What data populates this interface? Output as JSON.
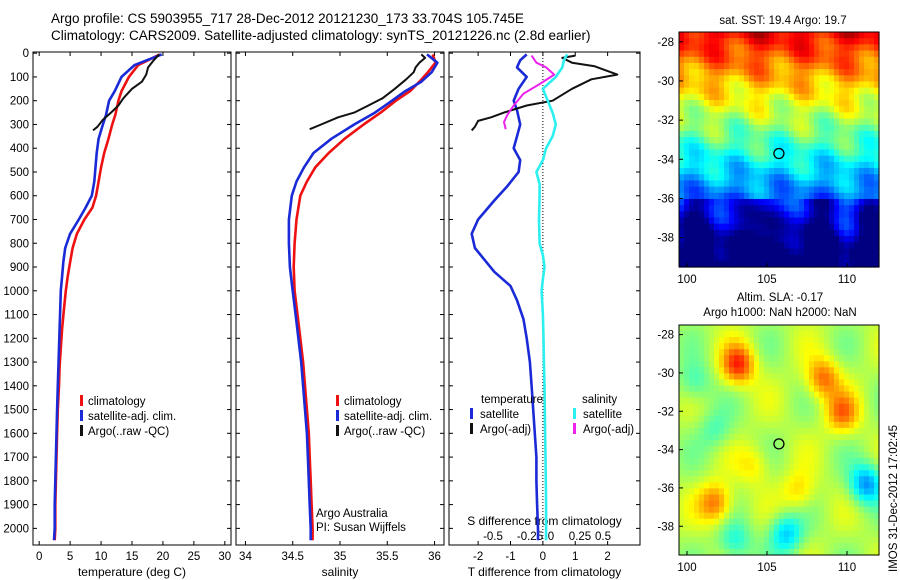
{
  "header": {
    "line1": "Argo profile: CS 5903955_717 28-Dec-2012 20121230_173 33.704S 105.745E",
    "line2": "Climatology: CARS2009. Satellite-adjusted climatology: synTS_20121226.nc (2.8d earlier)"
  },
  "stamp": "IMOS 31-Dec-2012 17:02:45",
  "colors": {
    "clim": "#ee1111",
    "sat": "#1a2ad6",
    "argo": "#111111",
    "sal_sat": "#2cf0f0",
    "sal_argo": "#ee22ee"
  },
  "depth_ticks": [
    0,
    100,
    200,
    300,
    400,
    500,
    600,
    700,
    800,
    900,
    1000,
    1100,
    1200,
    1300,
    1400,
    1500,
    1600,
    1700,
    1800,
    1900,
    2000
  ],
  "chart_data": [
    {
      "type": "line",
      "id": "temperature",
      "xlabel": "temperature (deg C)",
      "ylabel": "",
      "xlim": [
        -1,
        31
      ],
      "ylim": [
        2070,
        -5
      ],
      "xticks": [
        0,
        5,
        10,
        15,
        20,
        25,
        30
      ],
      "legend": [
        "climatology",
        "satellite-adj. clim.",
        "Argo(..raw -QC)"
      ],
      "series": [
        {
          "name": "climatology",
          "color": "clim",
          "points": [
            [
              19.5,
              5
            ],
            [
              16,
              50
            ],
            [
              14.5,
              100
            ],
            [
              13.3,
              160
            ],
            [
              12.8,
              200
            ],
            [
              12.3,
              260
            ],
            [
              11.8,
              300
            ],
            [
              11.2,
              360
            ],
            [
              10.5,
              420
            ],
            [
              10,
              480
            ],
            [
              9.6,
              540
            ],
            [
              9.2,
              600
            ],
            [
              8.6,
              650
            ],
            [
              7.3,
              700
            ],
            [
              6.1,
              760
            ],
            [
              5.4,
              820
            ],
            [
              5,
              880
            ],
            [
              4.6,
              940
            ],
            [
              4.3,
              1000
            ],
            [
              4,
              1080
            ],
            [
              3.7,
              1160
            ],
            [
              3.5,
              1240
            ],
            [
              3.3,
              1320
            ],
            [
              3.2,
              1400
            ],
            [
              3,
              1500
            ],
            [
              2.9,
              1600
            ],
            [
              2.8,
              1700
            ],
            [
              2.7,
              1800
            ],
            [
              2.6,
              1900
            ],
            [
              2.6,
              2000
            ],
            [
              2.5,
              2050
            ]
          ]
        },
        {
          "name": "satellite-adj. clim.",
          "color": "sat",
          "points": [
            [
              19.8,
              5
            ],
            [
              15.4,
              50
            ],
            [
              13.3,
              100
            ],
            [
              12.2,
              160
            ],
            [
              11.3,
              200
            ],
            [
              10.8,
              260
            ],
            [
              10.3,
              300
            ],
            [
              9.6,
              360
            ],
            [
              9.3,
              420
            ],
            [
              9.1,
              480
            ],
            [
              8.9,
              540
            ],
            [
              8.5,
              600
            ],
            [
              7.5,
              650
            ],
            [
              6.4,
              700
            ],
            [
              5,
              760
            ],
            [
              4.2,
              820
            ],
            [
              3.9,
              880
            ],
            [
              3.7,
              940
            ],
            [
              3.5,
              1000
            ],
            [
              3.4,
              1080
            ],
            [
              3.3,
              1160
            ],
            [
              3.2,
              1240
            ],
            [
              3.1,
              1320
            ],
            [
              3,
              1400
            ],
            [
              2.9,
              1500
            ],
            [
              2.8,
              1600
            ],
            [
              2.7,
              1700
            ],
            [
              2.6,
              1800
            ],
            [
              2.5,
              1900
            ],
            [
              2.5,
              2000
            ],
            [
              2.4,
              2050
            ]
          ]
        },
        {
          "name": "Argo(..raw -QC)",
          "color": "argo",
          "points": [
            [
              19.4,
              5
            ],
            [
              18.5,
              30
            ],
            [
              17.6,
              60
            ],
            [
              17.3,
              90
            ],
            [
              16.6,
              120
            ],
            [
              15,
              150
            ],
            [
              13.6,
              190
            ],
            [
              12.8,
              220
            ],
            [
              11.6,
              250
            ],
            [
              10.3,
              280
            ],
            [
              9.4,
              310
            ],
            [
              8.7,
              325
            ]
          ]
        }
      ]
    },
    {
      "type": "line",
      "id": "salinity",
      "xlabel": "salinity",
      "ylabel": "",
      "xlim": [
        33.9,
        36.1
      ],
      "ylim": [
        2070,
        -5
      ],
      "xticks": [
        34,
        34.5,
        35,
        35.5,
        36
      ],
      "legend": [
        "climatology",
        "satellite-adj. clim.",
        "Argo(..raw -QC)"
      ],
      "series": [
        {
          "name": "climatology",
          "color": "clim",
          "points": [
            [
              35.98,
              5
            ],
            [
              36.01,
              40
            ],
            [
              35.93,
              80
            ],
            [
              35.84,
              120
            ],
            [
              35.74,
              160
            ],
            [
              35.59,
              200
            ],
            [
              35.43,
              250
            ],
            [
              35.25,
              300
            ],
            [
              35.05,
              360
            ],
            [
              34.88,
              420
            ],
            [
              34.74,
              480
            ],
            [
              34.65,
              540
            ],
            [
              34.58,
              600
            ],
            [
              34.54,
              700
            ],
            [
              34.52,
              800
            ],
            [
              34.51,
              900
            ],
            [
              34.52,
              1000
            ],
            [
              34.55,
              1100
            ],
            [
              34.58,
              1200
            ],
            [
              34.61,
              1300
            ],
            [
              34.63,
              1400
            ],
            [
              34.65,
              1500
            ],
            [
              34.67,
              1600
            ],
            [
              34.68,
              1700
            ],
            [
              34.69,
              1800
            ],
            [
              34.7,
              1900
            ],
            [
              34.71,
              2000
            ],
            [
              34.71,
              2050
            ]
          ]
        },
        {
          "name": "satellite-adj. clim.",
          "color": "sat",
          "points": [
            [
              35.92,
              5
            ],
            [
              36.03,
              40
            ],
            [
              35.97,
              80
            ],
            [
              35.86,
              120
            ],
            [
              35.69,
              160
            ],
            [
              35.55,
              200
            ],
            [
              35.37,
              250
            ],
            [
              35.15,
              300
            ],
            [
              34.91,
              360
            ],
            [
              34.72,
              420
            ],
            [
              34.62,
              480
            ],
            [
              34.54,
              540
            ],
            [
              34.49,
              600
            ],
            [
              34.46,
              700
            ],
            [
              34.46,
              800
            ],
            [
              34.47,
              900
            ],
            [
              34.5,
              1000
            ],
            [
              34.53,
              1100
            ],
            [
              34.56,
              1200
            ],
            [
              34.59,
              1300
            ],
            [
              34.61,
              1400
            ],
            [
              34.63,
              1500
            ],
            [
              34.65,
              1600
            ],
            [
              34.66,
              1700
            ],
            [
              34.67,
              1800
            ],
            [
              34.68,
              1900
            ],
            [
              34.69,
              2000
            ],
            [
              34.69,
              2050
            ]
          ]
        },
        {
          "name": "Argo(..raw -QC)",
          "color": "argo",
          "points": [
            [
              35.86,
              5
            ],
            [
              35.9,
              20
            ],
            [
              35.84,
              40
            ],
            [
              35.8,
              60
            ],
            [
              35.78,
              80
            ],
            [
              35.7,
              110
            ],
            [
              35.58,
              150
            ],
            [
              35.45,
              190
            ],
            [
              35.3,
              220
            ],
            [
              35.15,
              250
            ],
            [
              34.98,
              270
            ],
            [
              34.8,
              300
            ],
            [
              34.68,
              320
            ]
          ]
        }
      ]
    },
    {
      "type": "line",
      "id": "differences",
      "xlabel": "T difference from climatology",
      "xlabel_top": "S difference from climatology",
      "xlim": [
        -2.9,
        3.0
      ],
      "ylim": [
        2070,
        -5
      ],
      "xticks": [
        -2,
        -1,
        0,
        1,
        2
      ],
      "xticks_top": [
        "-0.5",
        "-0.25",
        "0",
        "0.25",
        "0.5"
      ],
      "legend": {
        "temperature": [
          "satellite",
          "Argo(-adj)"
        ],
        "salinity": [
          "satellite",
          "Argo(-adj)"
        ]
      },
      "series": [
        {
          "name": "temperature satellite",
          "color": "sat",
          "points": [
            [
              -0.5,
              5
            ],
            [
              -0.7,
              30
            ],
            [
              -0.8,
              60
            ],
            [
              -0.5,
              100
            ],
            [
              -0.75,
              150
            ],
            [
              -0.9,
              200
            ],
            [
              -0.8,
              240
            ],
            [
              -0.7,
              300
            ],
            [
              -0.8,
              350
            ],
            [
              -0.9,
              400
            ],
            [
              -0.7,
              450
            ],
            [
              -0.75,
              500
            ],
            [
              -1.1,
              560
            ],
            [
              -1.5,
              620
            ],
            [
              -2.0,
              700
            ],
            [
              -2.2,
              760
            ],
            [
              -2.1,
              820
            ],
            [
              -1.8,
              870
            ],
            [
              -1.5,
              920
            ],
            [
              -1.0,
              980
            ],
            [
              -0.8,
              1040
            ],
            [
              -0.6,
              1120
            ],
            [
              -0.5,
              1200
            ],
            [
              -0.4,
              1300
            ],
            [
              -0.35,
              1400
            ],
            [
              -0.3,
              1500
            ],
            [
              -0.25,
              1600
            ],
            [
              -0.2,
              1700
            ],
            [
              -0.2,
              1800
            ],
            [
              -0.18,
              1900
            ],
            [
              -0.15,
              2000
            ],
            [
              -0.15,
              2050
            ]
          ]
        },
        {
          "name": "temperature Argo(-adj)",
          "color": "argo",
          "points": [
            [
              1.0,
              10
            ],
            [
              0.6,
              20
            ],
            [
              0.9,
              40
            ],
            [
              1.6,
              55
            ],
            [
              2.3,
              90
            ],
            [
              1.5,
              110
            ],
            [
              0.9,
              150
            ],
            [
              0.3,
              200
            ],
            [
              -0.5,
              220
            ],
            [
              -1.2,
              250
            ],
            [
              -1.6,
              270
            ],
            [
              -2.0,
              285
            ],
            [
              -2.1,
              310
            ],
            [
              -2.2,
              325
            ]
          ]
        },
        {
          "name": "salinity satellite",
          "color": "sal_sat",
          "points": [
            [
              0.75,
              5
            ],
            [
              0.65,
              30
            ],
            [
              0.6,
              60
            ],
            [
              0.4,
              100
            ],
            [
              0.0,
              150
            ],
            [
              0.15,
              200
            ],
            [
              0.3,
              250
            ],
            [
              0.4,
              300
            ],
            [
              0.3,
              350
            ],
            [
              0.1,
              400
            ],
            [
              0.0,
              450
            ],
            [
              -0.2,
              500
            ],
            [
              -0.1,
              550
            ],
            [
              -0.1,
              600
            ],
            [
              -0.12,
              700
            ],
            [
              -0.1,
              800
            ],
            [
              0.0,
              850
            ],
            [
              0.05,
              900
            ],
            [
              0.0,
              950
            ],
            [
              -0.04,
              1000
            ],
            [
              0.0,
              1100
            ],
            [
              0.02,
              1200
            ],
            [
              0.03,
              1300
            ],
            [
              0.05,
              1400
            ],
            [
              0.06,
              1500
            ],
            [
              0.07,
              1600
            ],
            [
              0.08,
              1700
            ],
            [
              0.09,
              1800
            ],
            [
              0.1,
              1900
            ],
            [
              0.1,
              2000
            ],
            [
              0.1,
              2050
            ]
          ]
        },
        {
          "name": "salinity Argo(-adj)",
          "color": "sal_argo",
          "points": [
            [
              -0.35,
              10
            ],
            [
              -0.2,
              40
            ],
            [
              0.1,
              60
            ],
            [
              0.35,
              90
            ],
            [
              -0.1,
              130
            ],
            [
              -0.6,
              170
            ],
            [
              -0.9,
              220
            ],
            [
              -1.1,
              260
            ],
            [
              -1.2,
              290
            ],
            [
              -1.15,
              320
            ]
          ]
        }
      ]
    },
    {
      "type": "heatmap",
      "id": "sst",
      "title": "sat. SST: 19.4  Argo: 19.7",
      "xlim": [
        99.5,
        112
      ],
      "ylim": [
        -39.5,
        -27.5
      ],
      "xticks": [
        100,
        105,
        110
      ],
      "yticks": [
        -28,
        -30,
        -32,
        -34,
        -36,
        -38
      ],
      "argo_location": [
        105.745,
        -33.704
      ]
    },
    {
      "type": "heatmap",
      "id": "sla",
      "title": "Altim. SLA: -0.17",
      "subtitle": "Argo h1000: NaN h2000: NaN",
      "xlim": [
        99.5,
        112
      ],
      "ylim": [
        -39.5,
        -27.5
      ],
      "xticks": [
        100,
        105,
        110
      ],
      "yticks": [
        -28,
        -30,
        -32,
        -34,
        -36,
        -38
      ],
      "argo_location": [
        105.745,
        -33.704
      ]
    }
  ]
}
